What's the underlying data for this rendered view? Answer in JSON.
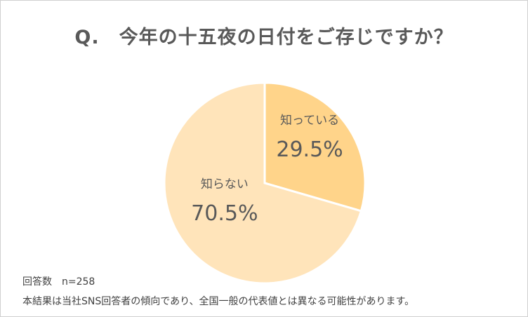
{
  "title": "Q.　今年の十五夜の日付をご存じですか？",
  "colors": {
    "slice_know": "#FFD48A",
    "slice_dont_know": "#FFE4BA",
    "stroke": "#ffffff",
    "text": "#595959"
  },
  "chart_data": {
    "type": "pie",
    "categories": [
      "知っている",
      "知らない"
    ],
    "values": [
      29.5,
      70.5
    ],
    "labels": [
      "29.5%",
      "70.5%"
    ],
    "start_angle_deg": 0,
    "direction": "clockwise"
  },
  "footer": {
    "sample_size": "回答数　n=258",
    "note": "本結果は当社SNS回答者の傾向であり、全国一般の代表値とは異なる可能性があります。"
  }
}
